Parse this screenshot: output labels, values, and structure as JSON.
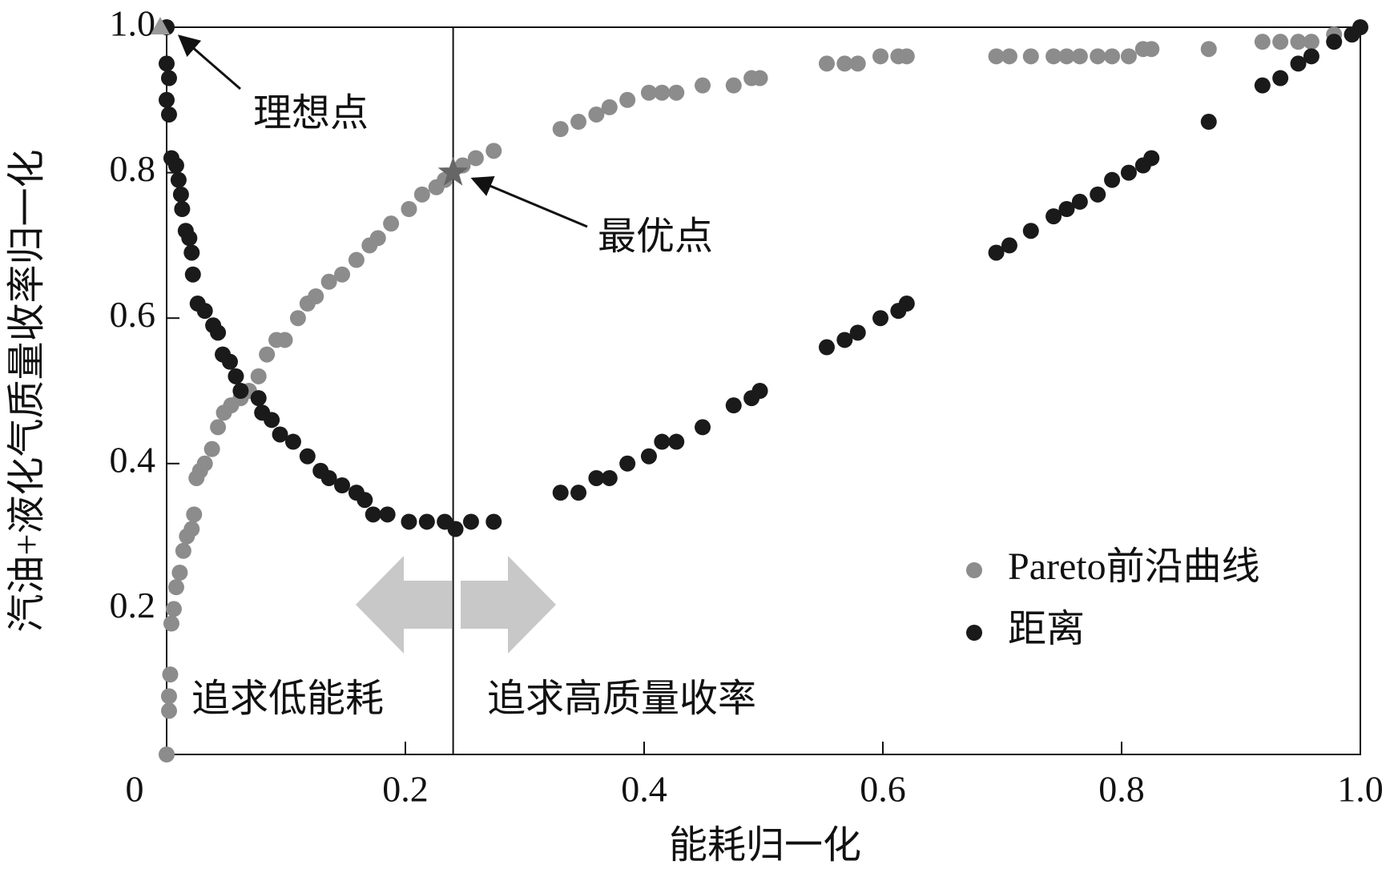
{
  "chart_data": {
    "type": "scatter",
    "xlabel": "能耗归一化",
    "ylabel": "汽油+液化气质量收率归一化",
    "xlim": [
      0,
      1.0
    ],
    "ylim": [
      0,
      1.0
    ],
    "xticks": [
      0,
      0.2,
      0.4,
      0.6,
      0.8,
      {
        "value": 1.0,
        "label": "1.0"
      }
    ],
    "yticks": [
      0.2,
      0.4,
      0.6,
      0.8,
      {
        "value": 1.0,
        "label": "1.0"
      }
    ],
    "legend": "lower right",
    "series": [
      {
        "name": "Pareto前沿曲线",
        "color": "#8c8c8c",
        "x": [
          0,
          0.002,
          0.002,
          0.003,
          0.004,
          0.006,
          0.008,
          0.011,
          0.014,
          0.017,
          0.021,
          0.023,
          0.025,
          0.028,
          0.032,
          0.038,
          0.043,
          0.048,
          0.054,
          0.062,
          0.069,
          0.077,
          0.084,
          0.092,
          0.099,
          0.11,
          0.118,
          0.125,
          0.136,
          0.147,
          0.159,
          0.17,
          0.177,
          0.188,
          0.203,
          0.214,
          0.226,
          0.233,
          0.248,
          0.259,
          0.274,
          0.33,
          0.345,
          0.36,
          0.371,
          0.386,
          0.404,
          0.415,
          0.427,
          0.449,
          0.475,
          0.49,
          0.497,
          0.553,
          0.568,
          0.579,
          0.598,
          0.613,
          0.62,
          0.695,
          0.706,
          0.724,
          0.743,
          0.754,
          0.765,
          0.78,
          0.792,
          0.806,
          0.818,
          0.825,
          0.873,
          0.918,
          0.933,
          0.948,
          0.959,
          0.978,
          0.993
        ],
        "y": [
          0,
          0.06,
          0.08,
          0.11,
          0.18,
          0.2,
          0.23,
          0.25,
          0.28,
          0.3,
          0.31,
          0.33,
          0.38,
          0.39,
          0.4,
          0.42,
          0.45,
          0.47,
          0.48,
          0.49,
          0.5,
          0.52,
          0.55,
          0.57,
          0.57,
          0.6,
          0.62,
          0.63,
          0.65,
          0.66,
          0.68,
          0.7,
          0.71,
          0.73,
          0.75,
          0.77,
          0.78,
          0.79,
          0.81,
          0.82,
          0.83,
          0.86,
          0.87,
          0.88,
          0.89,
          0.9,
          0.91,
          0.91,
          0.91,
          0.92,
          0.92,
          0.93,
          0.93,
          0.95,
          0.95,
          0.95,
          0.96,
          0.96,
          0.96,
          0.96,
          0.96,
          0.96,
          0.96,
          0.96,
          0.96,
          0.96,
          0.96,
          0.96,
          0.97,
          0.97,
          0.97,
          0.98,
          0.98,
          0.98,
          0.98,
          0.99,
          0.99
        ]
      },
      {
        "name": "距离",
        "color": "#1a1a1a",
        "x": [
          0,
          0,
          0.002,
          0,
          0.002,
          0.004,
          0.008,
          0.01,
          0.012,
          0.013,
          0.016,
          0.019,
          0.021,
          0.022,
          0.026,
          0.032,
          0.039,
          0.043,
          0.047,
          0.053,
          0.058,
          0.062,
          0.077,
          0.08,
          0.088,
          0.095,
          0.106,
          0.118,
          0.129,
          0.136,
          0.147,
          0.159,
          0.166,
          0.173,
          0.185,
          0.203,
          0.218,
          0.233,
          0.242,
          0.255,
          0.274,
          0.33,
          0.345,
          0.36,
          0.371,
          0.386,
          0.404,
          0.415,
          0.427,
          0.449,
          0.475,
          0.49,
          0.497,
          0.553,
          0.568,
          0.579,
          0.598,
          0.613,
          0.62,
          0.695,
          0.706,
          0.724,
          0.743,
          0.754,
          0.765,
          0.78,
          0.792,
          0.806,
          0.818,
          0.825,
          0.873,
          0.918,
          0.933,
          0.948,
          0.959,
          0.978,
          0.993,
          1.0
        ],
        "y": [
          1.0,
          0.95,
          0.93,
          0.9,
          0.88,
          0.82,
          0.81,
          0.79,
          0.77,
          0.75,
          0.72,
          0.71,
          0.69,
          0.66,
          0.62,
          0.61,
          0.59,
          0.58,
          0.55,
          0.54,
          0.52,
          0.5,
          0.49,
          0.47,
          0.46,
          0.44,
          0.43,
          0.41,
          0.39,
          0.38,
          0.37,
          0.36,
          0.35,
          0.33,
          0.33,
          0.32,
          0.32,
          0.32,
          0.31,
          0.32,
          0.32,
          0.36,
          0.36,
          0.38,
          0.38,
          0.4,
          0.41,
          0.43,
          0.43,
          0.45,
          0.48,
          0.49,
          0.5,
          0.56,
          0.57,
          0.58,
          0.6,
          0.61,
          0.62,
          0.69,
          0.7,
          0.72,
          0.74,
          0.75,
          0.76,
          0.77,
          0.79,
          0.8,
          0.81,
          0.82,
          0.87,
          0.92,
          0.93,
          0.95,
          0.96,
          0.98,
          0.99,
          1.0
        ]
      }
    ],
    "vline": 0.24,
    "annotations": [
      {
        "text": "理想点",
        "x": 0,
        "y": 1.0
      },
      {
        "text": "最优点",
        "x": 0.24,
        "y": 0.8
      }
    ],
    "region_labels": [
      "追求低能耗",
      "追求高质量收率"
    ]
  }
}
